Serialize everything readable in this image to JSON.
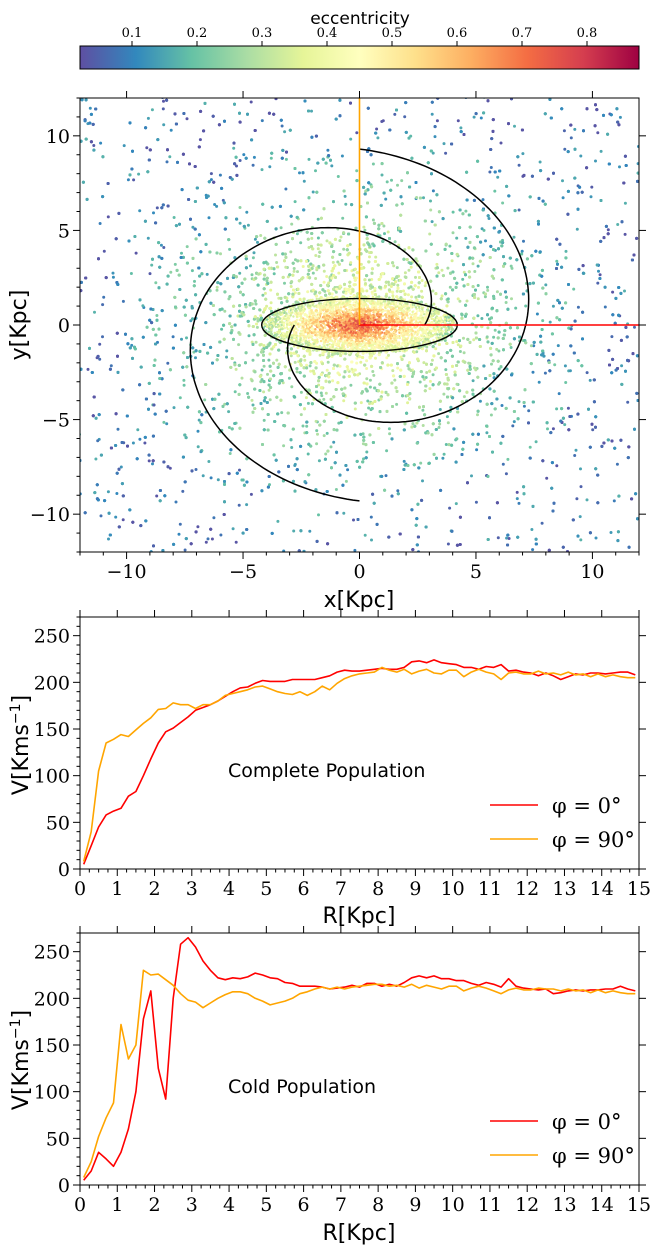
{
  "colorbar": {
    "label": "eccentricity",
    "range": [
      0.02,
      0.88
    ],
    "ticks": [
      0.1,
      0.2,
      0.3,
      0.4,
      0.5,
      0.6,
      0.7,
      0.8
    ],
    "tick_labels": [
      "0.1",
      "0.2",
      "0.3",
      "0.4",
      "0.5",
      "0.6",
      "0.7",
      "0.8"
    ],
    "colormap": [
      "#5e4fa2",
      "#3288bd",
      "#66c2a5",
      "#abdda4",
      "#e6f598",
      "#ffffbf",
      "#fee08b",
      "#fdae61",
      "#f46d43",
      "#d53e4f",
      "#9e0142"
    ]
  },
  "chart_data": [
    {
      "type": "scatter",
      "title": "",
      "xlabel": "x[Kpc]",
      "ylabel": "y[Kpc]",
      "xlim": [
        -12,
        12
      ],
      "ylim": [
        -12,
        12
      ],
      "xticks": [
        -10,
        -5,
        0,
        5,
        10
      ],
      "yticks": [
        -10,
        -5,
        0,
        5,
        10
      ],
      "xtick_labels": [
        "−10",
        "−5",
        "0",
        "5",
        "10"
      ],
      "ytick_labels": [
        "−10",
        "−5",
        "0",
        "5",
        "10"
      ],
      "color_by": "eccentricity",
      "density_model": {
        "core_eccentricity": 0.75,
        "edge_eccentricity": 0.08,
        "bar_half_length": 4.2,
        "bar_half_width": 1.4
      },
      "overlays": {
        "bar_ellipse": {
          "center": [
            0,
            0
          ],
          "semi_major": 4.2,
          "semi_minor": 1.4
        },
        "spiral_arms": {
          "r0": 2.8,
          "r1": 9.3,
          "turn_degrees": 270,
          "count": 2
        },
        "phi0_line": {
          "from": [
            0,
            0
          ],
          "to": [
            12,
            0
          ],
          "color": "#ff0000"
        },
        "phi90_line": {
          "from": [
            0,
            0
          ],
          "to": [
            0,
            12
          ],
          "color": "#ffa500"
        }
      }
    },
    {
      "type": "line",
      "xlabel": "R[Kpc]",
      "ylabel": "V[Kms$^{-1}$]",
      "ylabel_text": "V[Kms",
      "ylabel_sup": "−1",
      "ylabel_close": "]",
      "xlim": [
        0,
        15
      ],
      "ylim": [
        0,
        270
      ],
      "xticks": [
        0,
        1,
        2,
        3,
        4,
        5,
        6,
        7,
        8,
        9,
        10,
        11,
        12,
        13,
        14,
        15
      ],
      "yticks": [
        0,
        50,
        100,
        150,
        200,
        250
      ],
      "annotation": "Complete Population",
      "series": [
        {
          "name": "φ = 0°",
          "legend_label": "φ = 0°",
          "color": "#ff0000",
          "x": [
            0.1,
            0.3,
            0.5,
            0.7,
            0.9,
            1.1,
            1.3,
            1.5,
            1.7,
            1.9,
            2.1,
            2.3,
            2.5,
            2.7,
            2.9,
            3.1,
            3.3,
            3.5,
            3.7,
            3.9,
            4.1,
            4.3,
            4.5,
            4.7,
            4.9,
            5.1,
            5.3,
            5.5,
            5.7,
            5.9,
            6.1,
            6.3,
            6.5,
            6.7,
            6.9,
            7.1,
            7.3,
            7.5,
            7.7,
            7.9,
            8.1,
            8.3,
            8.5,
            8.7,
            8.9,
            9.1,
            9.3,
            9.5,
            9.7,
            9.9,
            10.1,
            10.3,
            10.5,
            10.7,
            10.9,
            11.1,
            11.3,
            11.5,
            11.7,
            11.9,
            12.1,
            12.3,
            12.5,
            12.7,
            12.9,
            13.1,
            13.3,
            13.5,
            13.7,
            13.9,
            14.1,
            14.3,
            14.5,
            14.7,
            14.9
          ],
          "y": [
            5,
            25,
            45,
            58,
            62,
            65,
            78,
            83,
            100,
            118,
            135,
            147,
            151,
            157,
            163,
            170,
            173,
            176,
            180,
            185,
            190,
            194,
            195,
            199,
            202,
            201,
            201,
            201,
            203,
            203,
            203,
            203,
            205,
            207,
            211,
            213,
            212,
            212,
            213,
            214,
            215,
            214,
            214,
            216,
            222,
            223,
            221,
            224,
            221,
            220,
            219,
            216,
            216,
            214,
            217,
            216,
            219,
            212,
            213,
            211,
            210,
            207,
            210,
            207,
            203,
            206,
            209,
            208,
            210,
            210,
            209,
            210,
            211,
            211,
            208
          ]
        },
        {
          "name": "φ = 90°",
          "legend_label": "φ = 90°",
          "color": "#ffa500",
          "x": [
            0.1,
            0.3,
            0.5,
            0.7,
            0.9,
            1.1,
            1.3,
            1.5,
            1.7,
            1.9,
            2.1,
            2.3,
            2.5,
            2.7,
            2.9,
            3.1,
            3.3,
            3.5,
            3.7,
            3.9,
            4.1,
            4.3,
            4.5,
            4.7,
            4.9,
            5.1,
            5.3,
            5.5,
            5.7,
            5.9,
            6.1,
            6.3,
            6.5,
            6.7,
            6.9,
            7.1,
            7.3,
            7.5,
            7.7,
            7.9,
            8.1,
            8.3,
            8.5,
            8.7,
            8.9,
            9.1,
            9.3,
            9.5,
            9.7,
            9.9,
            10.1,
            10.3,
            10.5,
            10.7,
            10.9,
            11.1,
            11.3,
            11.5,
            11.7,
            11.9,
            12.1,
            12.3,
            12.5,
            12.7,
            12.9,
            13.1,
            13.3,
            13.5,
            13.7,
            13.9,
            14.1,
            14.3,
            14.5,
            14.7,
            14.9
          ],
          "y": [
            8,
            40,
            105,
            135,
            139,
            144,
            142,
            149,
            156,
            162,
            171,
            172,
            178,
            176,
            176,
            172,
            176,
            176,
            180,
            186,
            188,
            190,
            192,
            195,
            196,
            193,
            190,
            188,
            187,
            190,
            186,
            190,
            196,
            192,
            199,
            204,
            207,
            209,
            210,
            211,
            216,
            213,
            211,
            214,
            209,
            212,
            214,
            210,
            209,
            213,
            213,
            206,
            211,
            214,
            211,
            209,
            203,
            210,
            211,
            209,
            209,
            212,
            209,
            210,
            208,
            211,
            208,
            209,
            206,
            209,
            206,
            208,
            206,
            205,
            205
          ]
        }
      ]
    },
    {
      "type": "line",
      "xlabel": "R[Kpc]",
      "ylabel": "V[Kms$^{-1}$]",
      "ylabel_text": "V[Kms",
      "ylabel_sup": "−1",
      "ylabel_close": "]",
      "xlim": [
        0,
        15
      ],
      "ylim": [
        0,
        270
      ],
      "xticks": [
        0,
        1,
        2,
        3,
        4,
        5,
        6,
        7,
        8,
        9,
        10,
        11,
        12,
        13,
        14,
        15
      ],
      "yticks": [
        0,
        50,
        100,
        150,
        200,
        250
      ],
      "annotation": "Cold Population",
      "series": [
        {
          "name": "φ = 0°",
          "legend_label": "φ = 0°",
          "color": "#ff0000",
          "x": [
            0.1,
            0.3,
            0.5,
            0.7,
            0.9,
            1.1,
            1.3,
            1.5,
            1.7,
            1.9,
            2.1,
            2.3,
            2.5,
            2.7,
            2.9,
            3.1,
            3.3,
            3.5,
            3.7,
            3.9,
            4.1,
            4.3,
            4.5,
            4.7,
            4.9,
            5.1,
            5.3,
            5.5,
            5.7,
            5.9,
            6.1,
            6.3,
            6.5,
            6.7,
            6.9,
            7.1,
            7.3,
            7.5,
            7.7,
            7.9,
            8.1,
            8.3,
            8.5,
            8.7,
            8.9,
            9.1,
            9.3,
            9.5,
            9.7,
            9.9,
            10.1,
            10.3,
            10.5,
            10.7,
            10.9,
            11.1,
            11.3,
            11.5,
            11.7,
            11.9,
            12.1,
            12.3,
            12.5,
            12.7,
            12.9,
            13.1,
            13.3,
            13.5,
            13.7,
            13.9,
            14.1,
            14.3,
            14.5,
            14.7,
            14.9
          ],
          "y": [
            5,
            15,
            35,
            28,
            20,
            35,
            60,
            100,
            178,
            208,
            125,
            92,
            200,
            258,
            265,
            255,
            240,
            230,
            222,
            220,
            222,
            221,
            223,
            227,
            225,
            222,
            221,
            217,
            216,
            213,
            213,
            213,
            212,
            210,
            211,
            212,
            214,
            212,
            216,
            216,
            213,
            215,
            213,
            217,
            222,
            224,
            222,
            224,
            221,
            221,
            219,
            219,
            216,
            214,
            217,
            215,
            212,
            221,
            213,
            211,
            210,
            209,
            210,
            205,
            206,
            208,
            209,
            208,
            209,
            209,
            210,
            210,
            213,
            210,
            208
          ]
        },
        {
          "name": "φ = 90°",
          "legend_label": "φ = 90°",
          "color": "#ffa500",
          "x": [
            0.1,
            0.3,
            0.5,
            0.7,
            0.9,
            1.1,
            1.3,
            1.5,
            1.7,
            1.9,
            2.1,
            2.3,
            2.5,
            2.7,
            2.9,
            3.1,
            3.3,
            3.5,
            3.7,
            3.9,
            4.1,
            4.3,
            4.5,
            4.7,
            4.9,
            5.1,
            5.3,
            5.5,
            5.7,
            5.9,
            6.1,
            6.3,
            6.5,
            6.7,
            6.9,
            7.1,
            7.3,
            7.5,
            7.7,
            7.9,
            8.1,
            8.3,
            8.5,
            8.7,
            8.9,
            9.1,
            9.3,
            9.5,
            9.7,
            9.9,
            10.1,
            10.3,
            10.5,
            10.7,
            10.9,
            11.1,
            11.3,
            11.5,
            11.7,
            11.9,
            12.1,
            12.3,
            12.5,
            12.7,
            12.9,
            13.1,
            13.3,
            13.5,
            13.7,
            13.9,
            14.1,
            14.3,
            14.5,
            14.7,
            14.9
          ],
          "y": [
            8,
            25,
            52,
            72,
            88,
            172,
            135,
            150,
            230,
            225,
            226,
            220,
            214,
            205,
            198,
            196,
            190,
            195,
            200,
            204,
            207,
            207,
            205,
            200,
            197,
            193,
            195,
            197,
            200,
            205,
            207,
            210,
            212,
            210,
            212,
            210,
            212,
            213,
            214,
            215,
            215,
            213,
            214,
            212,
            215,
            211,
            214,
            212,
            210,
            213,
            213,
            208,
            211,
            213,
            211,
            208,
            205,
            209,
            211,
            209,
            209,
            211,
            210,
            210,
            208,
            210,
            208,
            209,
            206,
            209,
            206,
            208,
            206,
            205,
            205
          ]
        }
      ]
    }
  ]
}
